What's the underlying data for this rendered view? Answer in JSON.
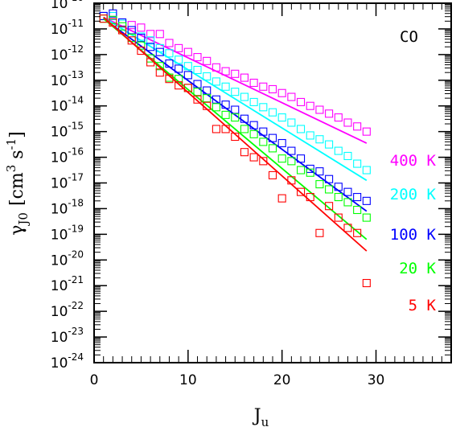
{
  "chart_data": {
    "type": "scatter",
    "annotation": "CO",
    "xlabel": {
      "main": "J",
      "sub": "u"
    },
    "ylabel": {
      "main": "γ",
      "sub": "J0",
      "unit_prefix": "[cm",
      "unit_exp1": "3",
      "unit_mid": " s",
      "unit_exp2": "-1",
      "unit_suffix": "]"
    },
    "xlim": [
      0,
      38
    ],
    "ylim_log10": [
      -24,
      -10
    ],
    "log_y": true,
    "x_ticks": [
      0,
      10,
      20,
      30
    ],
    "y_tick_exponents": [
      -24,
      -23,
      -22,
      -21,
      -20,
      -19,
      -18,
      -17,
      -16,
      -15,
      -14,
      -13,
      -12,
      -11,
      -10
    ],
    "y_tick_base": "10",
    "series": [
      {
        "name": "400 K",
        "color": "#ff00ff",
        "fit_x": [
          1,
          29
        ],
        "fit_log10": [
          -10.55,
          -15.45
        ],
        "x": [
          1,
          2,
          3,
          4,
          5,
          6,
          7,
          8,
          9,
          10,
          11,
          12,
          13,
          14,
          15,
          16,
          17,
          18,
          19,
          20,
          21,
          22,
          23,
          24,
          25,
          26,
          27,
          28,
          29
        ],
        "log10_y": [
          -10.5,
          -10.5,
          -10.8,
          -10.85,
          -10.95,
          -11.2,
          -11.2,
          -11.55,
          -11.75,
          -11.9,
          -12.1,
          -12.25,
          -12.5,
          -12.65,
          -12.75,
          -12.9,
          -13.1,
          -13.25,
          -13.35,
          -13.5,
          -13.65,
          -13.85,
          -14.0,
          -14.15,
          -14.3,
          -14.45,
          -14.65,
          -14.8,
          -15.0
        ]
      },
      {
        "name": "200 K",
        "color": "#00ffff",
        "fit_x": [
          1,
          29
        ],
        "fit_log10": [
          -10.55,
          -16.9
        ],
        "x": [
          1,
          2,
          3,
          4,
          5,
          6,
          7,
          8,
          9,
          10,
          11,
          12,
          13,
          14,
          15,
          16,
          17,
          18,
          19,
          20,
          21,
          22,
          23,
          24,
          25,
          26,
          27,
          28,
          29
        ],
        "log10_y": [
          -10.5,
          -10.5,
          -10.8,
          -11.05,
          -11.3,
          -11.45,
          -11.75,
          -11.95,
          -12.2,
          -12.45,
          -12.6,
          -12.85,
          -13.05,
          -13.25,
          -13.45,
          -13.65,
          -13.85,
          -14.05,
          -14.25,
          -14.45,
          -14.65,
          -14.9,
          -15.15,
          -15.3,
          -15.5,
          -15.75,
          -15.95,
          -16.25,
          -16.5
        ]
      },
      {
        "name": "100 K",
        "color": "#0000ff",
        "fit_x": [
          1,
          29
        ],
        "fit_log10": [
          -10.6,
          -18.1
        ],
        "x": [
          1,
          2,
          3,
          4,
          5,
          6,
          7,
          8,
          9,
          10,
          11,
          12,
          13,
          14,
          15,
          16,
          17,
          18,
          19,
          20,
          21,
          22,
          23,
          24,
          25,
          26,
          27,
          28,
          29
        ],
        "log10_y": [
          -10.5,
          -10.4,
          -10.75,
          -11.05,
          -11.35,
          -11.7,
          -11.9,
          -12.35,
          -12.55,
          -12.8,
          -13.15,
          -13.4,
          -13.75,
          -13.95,
          -14.15,
          -14.5,
          -14.75,
          -15.0,
          -15.25,
          -15.45,
          -15.75,
          -16.05,
          -16.45,
          -16.55,
          -16.85,
          -17.15,
          -17.35,
          -17.55,
          -17.7
        ]
      },
      {
        "name": "20 K",
        "color": "#00ff00",
        "fit_x": [
          1,
          29
        ],
        "fit_log10": [
          -10.6,
          -19.2
        ],
        "x": [
          1,
          2,
          3,
          4,
          5,
          6,
          7,
          8,
          9,
          10,
          11,
          12,
          13,
          14,
          15,
          16,
          17,
          18,
          19,
          20,
          21,
          22,
          23,
          24,
          25,
          26,
          27,
          28,
          29
        ],
        "log10_y": [
          -10.6,
          -10.65,
          -10.9,
          -11.35,
          -11.65,
          -12.15,
          -12.45,
          -12.9,
          -12.95,
          -13.3,
          -13.45,
          -13.7,
          -14.05,
          -14.35,
          -14.45,
          -14.9,
          -15.1,
          -15.4,
          -15.65,
          -16.05,
          -16.15,
          -16.5,
          -16.6,
          -17.05,
          -17.25,
          -17.55,
          -17.75,
          -18.05,
          -18.35
        ]
      },
      {
        "name": "5 K",
        "color": "#ff0000",
        "fit_x": [
          1,
          29
        ],
        "fit_log10": [
          -10.55,
          -19.65
        ],
        "x": [
          1,
          2,
          3,
          4,
          5,
          6,
          7,
          8,
          9,
          10,
          11,
          12,
          13,
          14,
          15,
          16,
          17,
          18,
          19,
          20,
          21,
          22,
          23,
          24,
          25,
          26,
          27,
          28,
          29
        ],
        "log10_y": [
          -10.6,
          -10.75,
          -11.05,
          -11.45,
          -11.85,
          -12.3,
          -12.7,
          -12.95,
          -13.2,
          -13.3,
          -13.75,
          -14.0,
          -14.9,
          -14.9,
          -15.2,
          -15.8,
          -16.0,
          -16.15,
          -16.7,
          -17.6,
          -16.9,
          -17.35,
          -17.55,
          -18.95,
          -17.9,
          -18.35,
          -18.75,
          -18.95,
          -20.9
        ]
      }
    ]
  }
}
